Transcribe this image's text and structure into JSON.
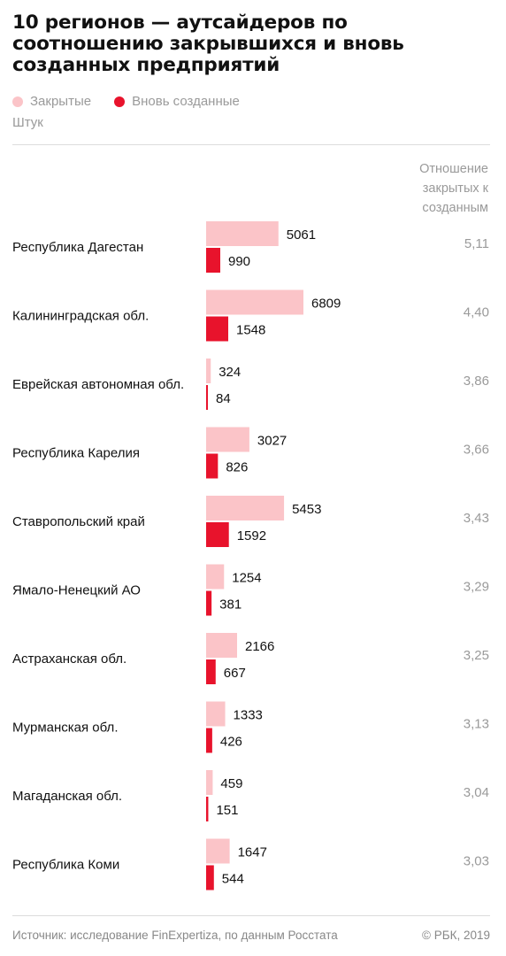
{
  "chart_data": {
    "type": "bar",
    "title": "10 регионов — аутсайдеров по соотношению закрывшихся и вновь созданных предприятий",
    "unit": "Штук",
    "ratio_header": "Отношение закрытых к созданным",
    "legend_position": "top-left",
    "series": [
      {
        "name": "Закрытые",
        "color": "#fbc4c8",
        "values": [
          5061,
          6809,
          324,
          3027,
          5453,
          1254,
          2166,
          1333,
          459,
          1647
        ]
      },
      {
        "name": "Вновь созданные",
        "color": "#e8132c",
        "values": [
          990,
          1548,
          84,
          826,
          1592,
          381,
          667,
          426,
          151,
          544
        ]
      }
    ],
    "categories": [
      "Республика Дагестан",
      "Калининградская обл.",
      "Еврейская автономная обл.",
      "Республика Карелия",
      "Ставропольский край",
      "Ямало-Ненецкий АО",
      "Астраханская обл.",
      "Мурманская обл.",
      "Магаданская обл.",
      "Республика Коми"
    ],
    "ratios": [
      "5,11",
      "4,40",
      "3,86",
      "3,66",
      "3,43",
      "3,29",
      "3,25",
      "3,13",
      "3,04",
      "3,03"
    ]
  },
  "footer": {
    "source": "Источник: исследование FinExpertiza, по данным Росстата",
    "copyright": "© РБК, 2019"
  }
}
